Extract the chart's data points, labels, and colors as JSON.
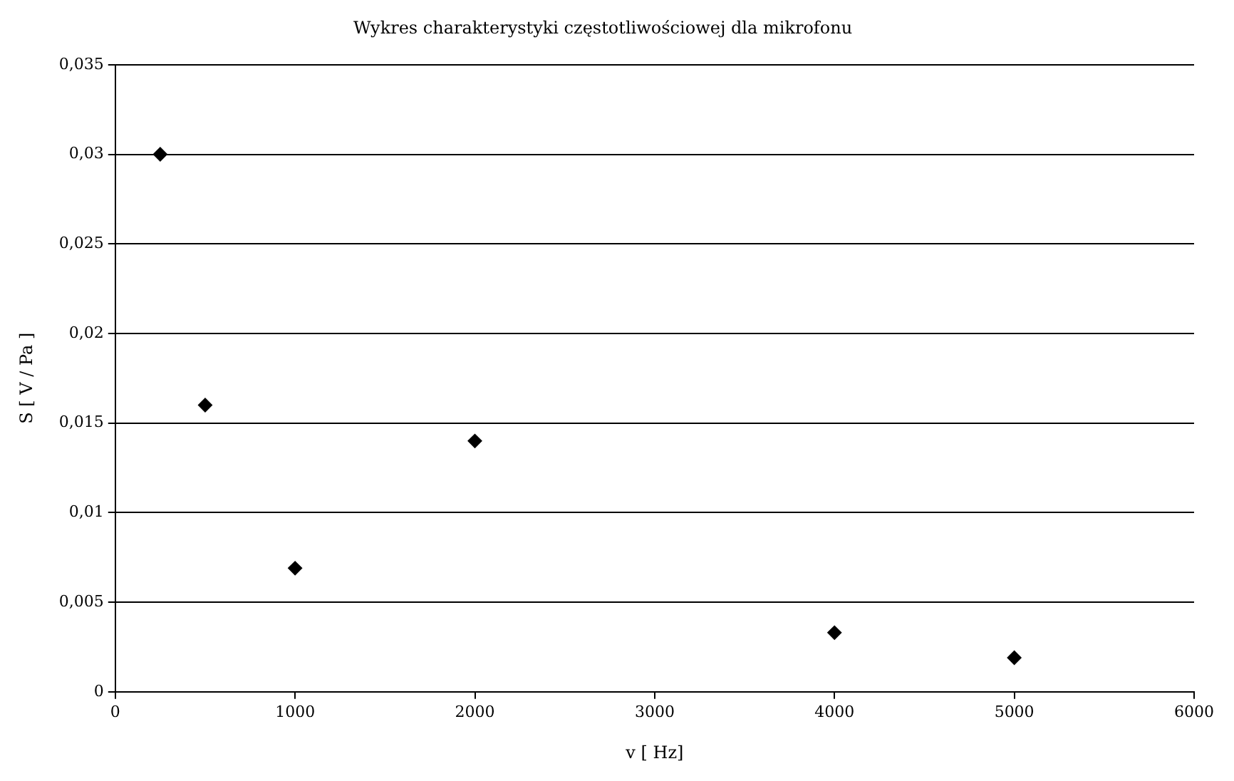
{
  "chart_data": {
    "type": "scatter",
    "title": "Wykres charakterystyki częstotliwościowej dla mikrofonu",
    "xlabel": "v [ Hz]",
    "ylabel": "S [ V / Pa ]",
    "x": [
      250,
      500,
      1000,
      2000,
      4000,
      5000
    ],
    "series": [
      {
        "color": "#000000",
        "values": [
          0.03,
          0.016,
          0.0069,
          0.014,
          0.0033,
          0.0019
        ]
      }
    ],
    "xlim": [
      0,
      6000
    ],
    "xticks": [
      0,
      1000,
      2000,
      3000,
      4000,
      5000,
      6000
    ],
    "ylim": [
      0,
      0.035
    ],
    "yticks": [
      0,
      {
        "value": 0.005,
        "label": "0,005"
      },
      {
        "value": 0.01,
        "label": "0,01"
      },
      {
        "value": 0.015,
        "label": "0,015"
      },
      {
        "value": 0.02,
        "label": "0,02"
      },
      {
        "value": 0.025,
        "label": "0,025"
      },
      {
        "value": 0.03,
        "label": "0,03"
      },
      {
        "value": 0.035,
        "label": "0,035"
      }
    ],
    "grid": "y",
    "marker": "diamond",
    "legend": false
  }
}
